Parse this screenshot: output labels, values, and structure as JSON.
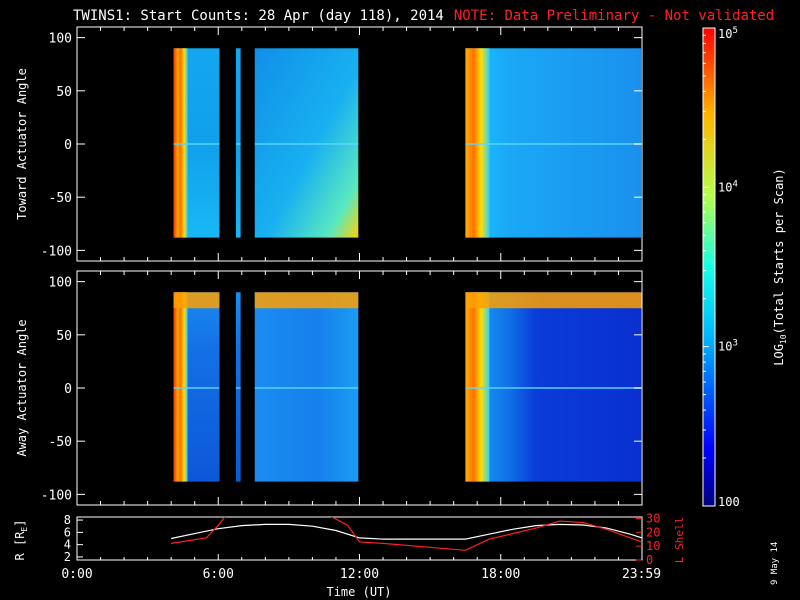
{
  "title": "TWINS1: Start Counts: 28 Apr (day 118), 2014",
  "note": "NOTE: Data Preliminary - Not validated",
  "date_stamp": "9 May 14",
  "colors": {
    "note": "#ff2020",
    "line_r": "#ffffff",
    "line_l": "#ff2020",
    "background": "#000000"
  },
  "chart_data": [
    {
      "type": "heatmap",
      "name": "toward",
      "ylabel": "Toward Actuator Angle",
      "ylim": [
        -110,
        110
      ],
      "yticks": [
        "100",
        "50",
        "0",
        "-50",
        "-100"
      ],
      "ytick_values": [
        100,
        50,
        0,
        -50,
        -100
      ],
      "xlim_hours": [
        0,
        24
      ],
      "data_blocks_hours": [
        [
          4.1,
          6.05
        ],
        [
          6.75,
          6.95
        ],
        [
          7.55,
          11.95
        ],
        [
          16.5,
          24
        ]
      ],
      "angle_range": [
        -88,
        90
      ],
      "description_of_intensity": "saturated (red/orange) near block starts, mostly cyan-blue ~10^3"
    },
    {
      "type": "heatmap",
      "name": "away",
      "ylabel": "Away Actuator Angle",
      "ylim": [
        -110,
        110
      ],
      "yticks": [
        "100",
        "50",
        "0",
        "-50",
        "-100"
      ],
      "ytick_values": [
        100,
        50,
        0,
        -50,
        -100
      ],
      "xlim_hours": [
        0,
        24
      ],
      "data_blocks_hours": [
        [
          4.1,
          6.05
        ],
        [
          6.75,
          6.95
        ],
        [
          7.55,
          11.95
        ],
        [
          16.5,
          24
        ]
      ],
      "angle_range": [
        -88,
        90
      ]
    },
    {
      "type": "line",
      "name": "orbit",
      "xlabel": "Time (UT)",
      "xticks": [
        "0:00",
        "6:00",
        "12:00",
        "18:00",
        "23:59"
      ],
      "xtick_hours": [
        0,
        6,
        12,
        18,
        23.98
      ],
      "ylabel_left": "R [R_E]",
      "ylabel_left_parts": {
        "main": "R [R",
        "sub": "E",
        "end": "]"
      },
      "yticks_left": [
        "8",
        "6",
        "4",
        "2"
      ],
      "ytick_left_values": [
        8,
        6,
        4,
        2
      ],
      "ylim_left": [
        1.5,
        8.5
      ],
      "ylabel_right": "L Shell",
      "yticks_right": [
        "30",
        "20",
        "10",
        "0"
      ],
      "ytick_right_values": [
        30,
        20,
        10,
        0
      ],
      "ylim_right": [
        0,
        31
      ],
      "series": [
        {
          "name": "R",
          "x": [
            4.0,
            5.0,
            6.0,
            7.0,
            8.0,
            9.0,
            10.0,
            11.0,
            12.0,
            13.0,
            14.0,
            15.0,
            16.5,
            17.5,
            18.5,
            19.5,
            20.5,
            21.5,
            22.5,
            23.5,
            24.0
          ],
          "y": [
            5.0,
            5.8,
            6.6,
            7.1,
            7.3,
            7.3,
            7.0,
            6.3,
            5.1,
            4.9,
            4.9,
            4.9,
            4.9,
            5.7,
            6.5,
            7.1,
            7.3,
            7.2,
            6.7,
            5.7,
            5.1
          ]
        },
        {
          "name": "L Shell",
          "x": [
            4.0,
            5.5,
            6.0,
            6.5,
            10.5,
            11.5,
            12.0,
            13.0,
            16.5,
            17.5,
            18.5,
            19.5,
            20.5,
            21.5,
            22.5,
            24.0
          ],
          "y": [
            12,
            16,
            25,
            36,
            34,
            25,
            13,
            12,
            7,
            15,
            19,
            23,
            28,
            27,
            22,
            13
          ]
        }
      ]
    }
  ],
  "colorbar": {
    "label": "LOG10(Total Starts per Scan)",
    "label_parts": {
      "pre": "LOG",
      "sub": "10",
      "post": "(Total Starts per Scan)"
    },
    "scale": "log",
    "range": [
      100,
      100000
    ],
    "ticks": [
      {
        "base": "10",
        "exp": "5",
        "value": 100000
      },
      {
        "base": "10",
        "exp": "4",
        "value": 10000
      },
      {
        "base": "10",
        "exp": "3",
        "value": 1000
      },
      {
        "base": "100",
        "exp": "",
        "value": 100
      }
    ]
  }
}
